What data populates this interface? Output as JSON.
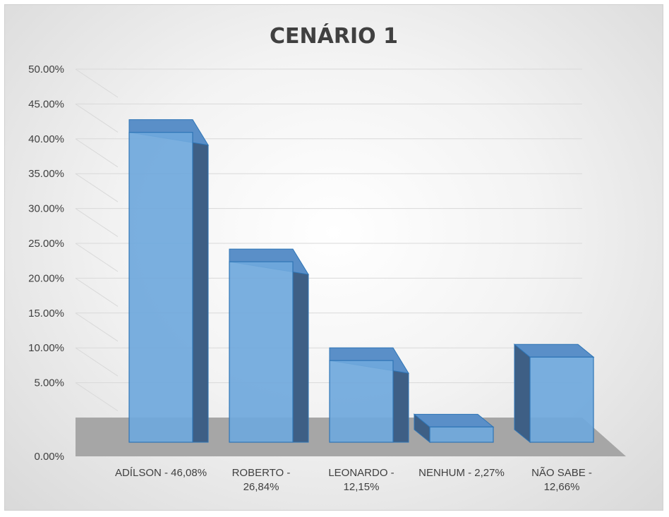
{
  "chart_data": {
    "type": "bar",
    "title": "CENÁRIO 1",
    "categories": [
      [
        "ADÍLSON - 46,08%"
      ],
      [
        "ROBERTO -",
        "26,84%"
      ],
      [
        "LEONARDO -",
        "12,15%"
      ],
      [
        "NENHUM - 2,27%"
      ],
      [
        "NÃO SABE -",
        "12,66%"
      ]
    ],
    "values": [
      46.08,
      26.84,
      12.15,
      2.27,
      12.66
    ],
    "ylim": [
      0,
      50
    ],
    "yticks": [
      "0.00%",
      "5.00%",
      "10.00%",
      "15.00%",
      "20.00%",
      "25.00%",
      "30.00%",
      "35.00%",
      "40.00%",
      "45.00%",
      "50.00%"
    ],
    "xlabel": "",
    "ylabel": "",
    "grid": true,
    "legend": "none",
    "style": "3d-column",
    "colors": {
      "bar_front": "#6fa8dc",
      "bar_edge": "#2e75b6",
      "bar_side": "#3e5f85",
      "bar_top": "#5a8fc8",
      "floor": "#a6a6a6",
      "grid": "#d9d9d9",
      "text": "#404040"
    }
  }
}
